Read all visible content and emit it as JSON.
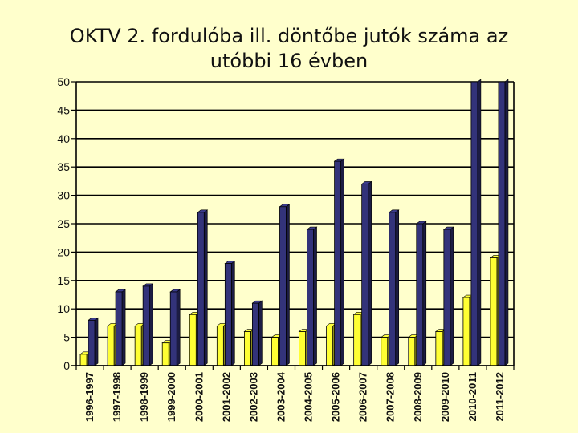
{
  "chart_data": {
    "type": "bar",
    "title_lines": [
      "OKTV 2. fordulóba ill. döntőbe jutók száma az",
      "utóbbi 16 évben"
    ],
    "xlabel": "",
    "ylabel": "",
    "ylim": [
      0,
      50
    ],
    "yticks": [
      0,
      5,
      10,
      15,
      20,
      25,
      30,
      35,
      40,
      45,
      50
    ],
    "grid": true,
    "legend": "none",
    "categories": [
      "1996-1997",
      "1997-1998",
      "1998-1999",
      "1999-2000",
      "2000-2001",
      "2001-2002",
      "2002-2003",
      "2003-2004",
      "2004-2005",
      "2005-2006",
      "2006-2007",
      "2007-2008",
      "2008-2009",
      "2009-2010",
      "2010-2011",
      "2011-2012"
    ],
    "series": [
      {
        "color": "#FFFF33",
        "values": [
          2,
          7,
          7,
          4,
          9,
          7,
          6,
          5,
          6,
          7,
          9,
          5,
          5,
          6,
          12,
          19
        ]
      },
      {
        "color": "#33337A",
        "values": [
          8,
          13,
          14,
          13,
          27,
          18,
          11,
          28,
          24,
          36,
          32,
          27,
          25,
          24,
          50,
          50
        ]
      }
    ]
  }
}
